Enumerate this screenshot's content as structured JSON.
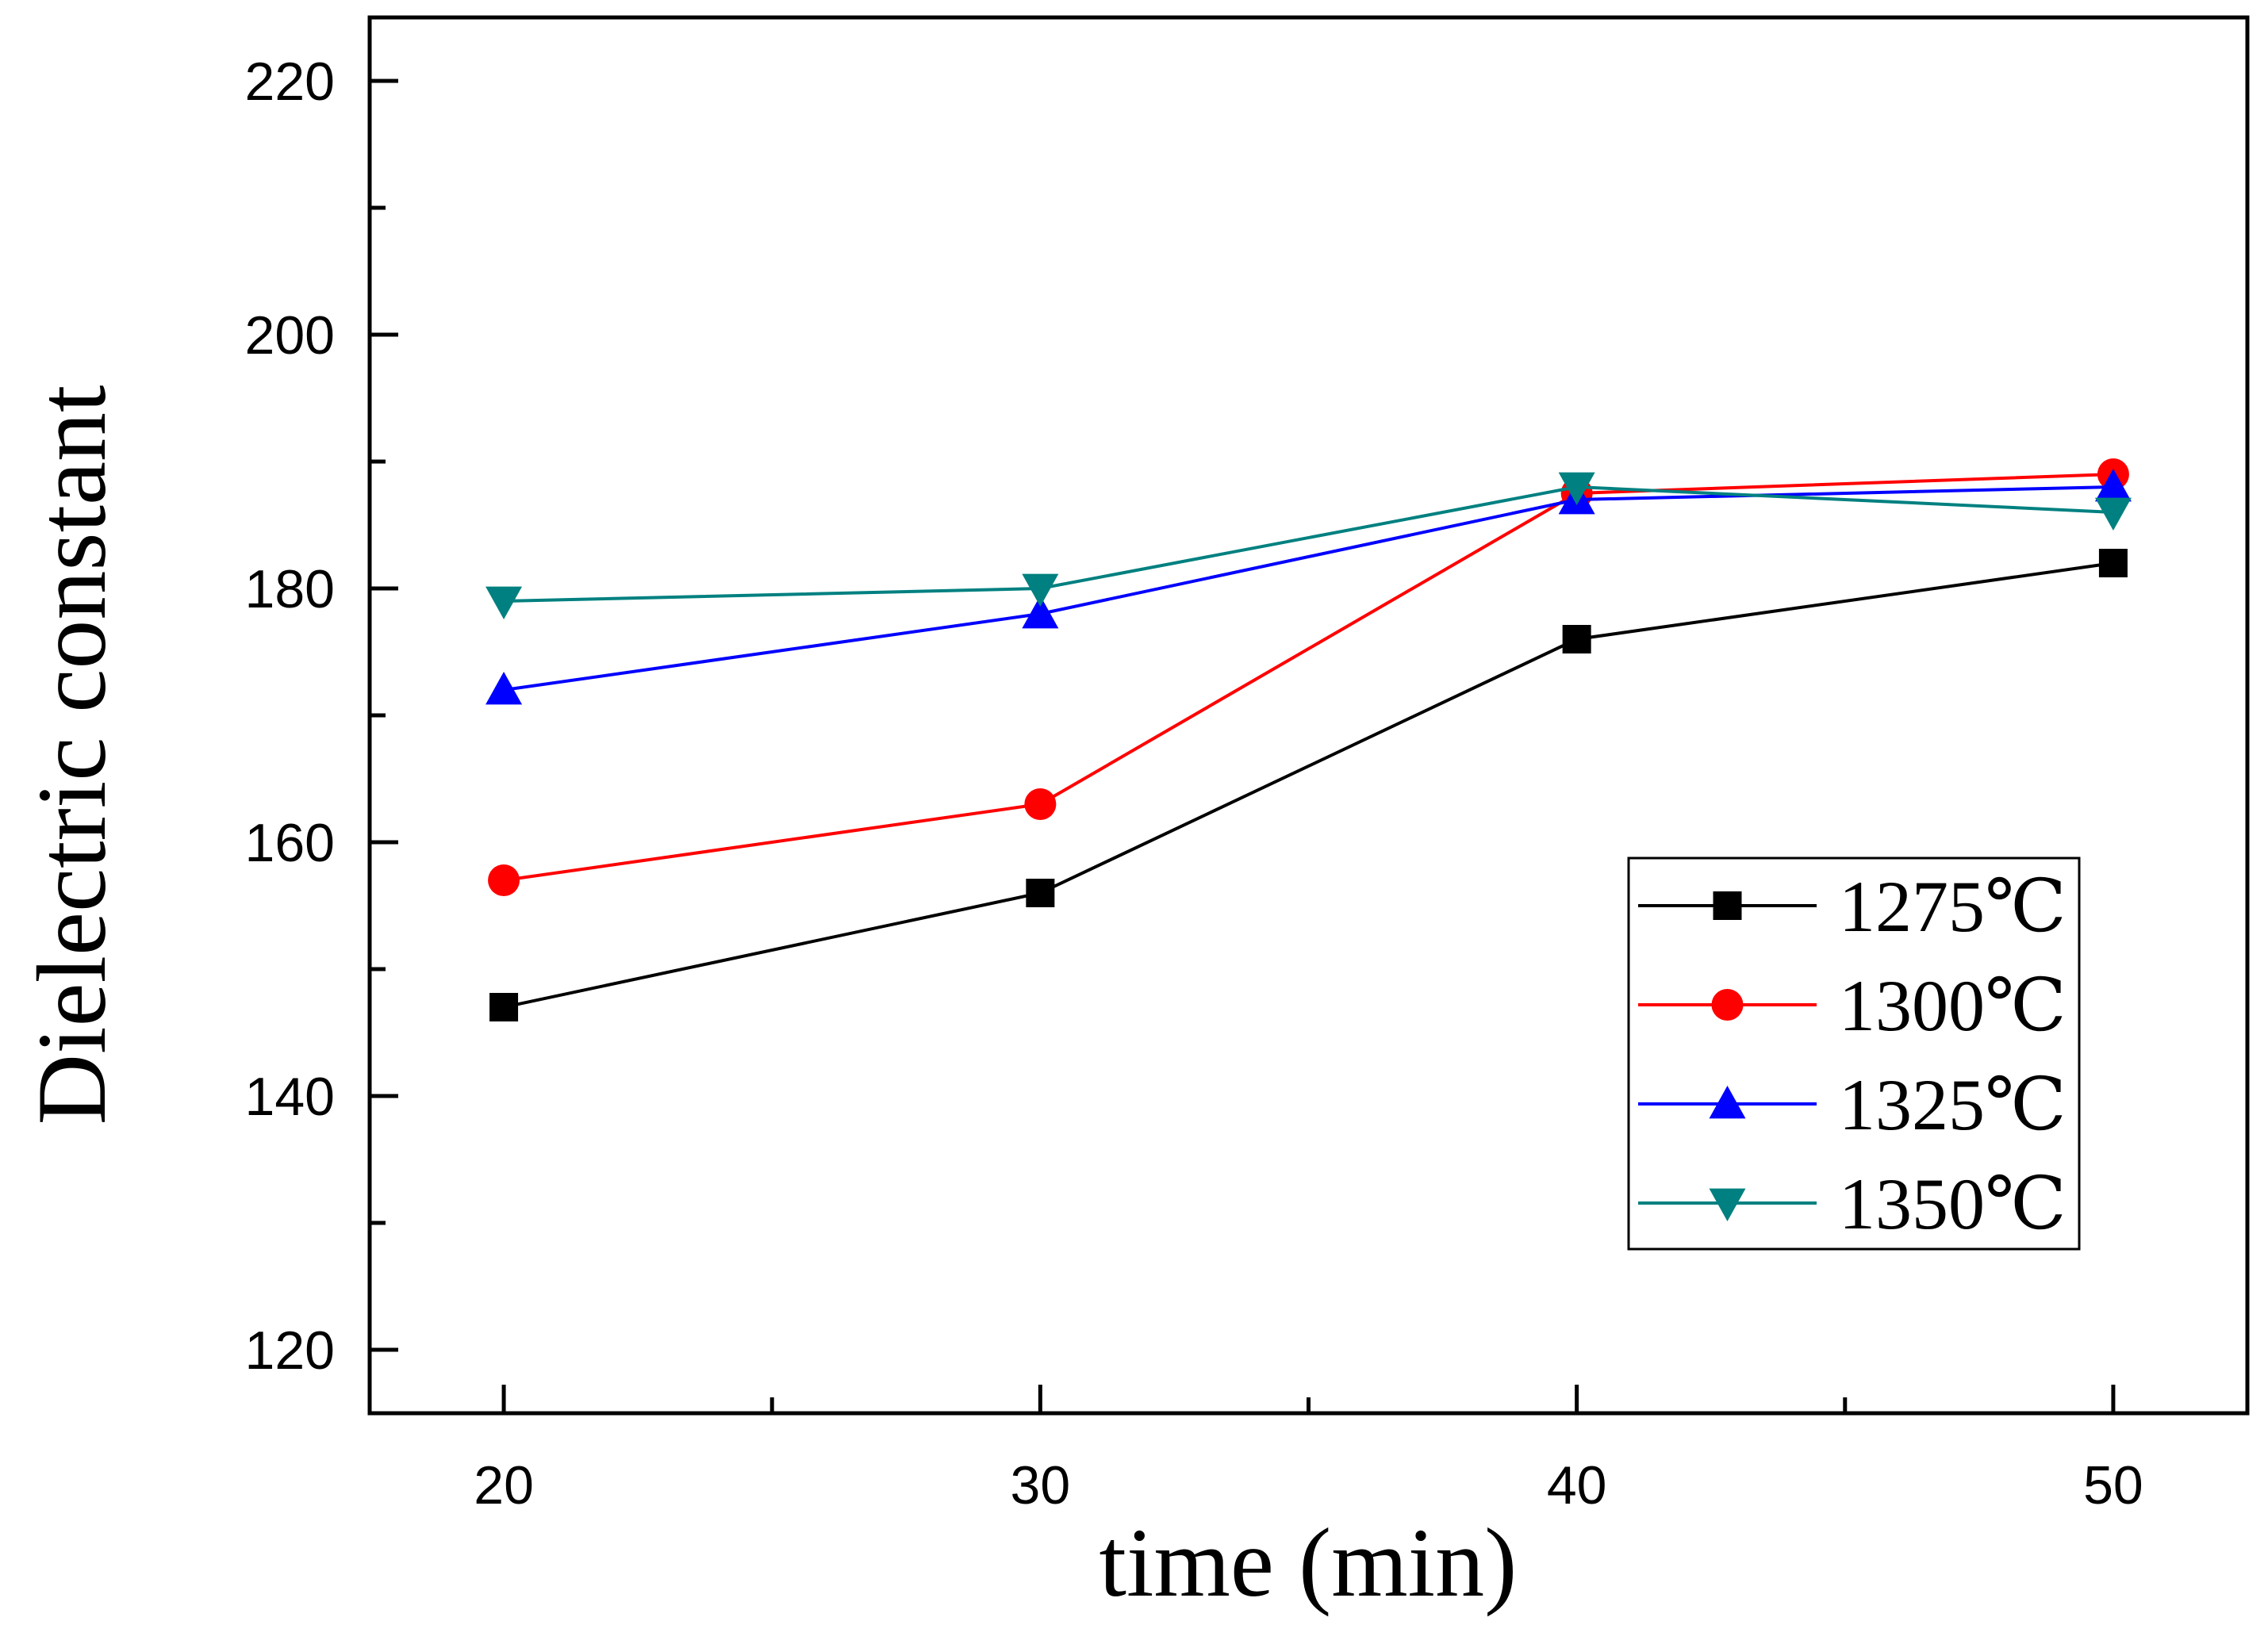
{
  "chart_data": {
    "type": "line",
    "title": "",
    "xlabel": "time (min)",
    "ylabel": "Dielectric constant",
    "x": [
      20,
      30,
      40,
      50
    ],
    "xlim": [
      17.5,
      52.5
    ],
    "ylim": [
      115,
      225
    ],
    "x_ticks": [
      20,
      30,
      40,
      50
    ],
    "x_minor_ticks": [
      25,
      35,
      45
    ],
    "y_ticks": [
      120,
      140,
      160,
      180,
      200,
      220
    ],
    "y_minor_ticks": [
      130,
      150,
      170,
      190,
      210
    ],
    "x_tick_labels": [
      "20",
      "30",
      "40",
      "50"
    ],
    "y_tick_labels": [
      "120",
      "140",
      "160",
      "180",
      "200",
      "220"
    ],
    "grid": false,
    "legend_position": "lower-right",
    "series": [
      {
        "name": "1275℃",
        "color": "#000000",
        "marker": "square",
        "values": [
          147,
          156,
          176,
          182
        ]
      },
      {
        "name": "1300℃",
        "color": "#ff0000",
        "marker": "circle",
        "values": [
          157,
          163,
          187.5,
          189
        ]
      },
      {
        "name": "1325℃",
        "color": "#0000ff",
        "marker": "triangle-up",
        "values": [
          172,
          178,
          187,
          188
        ]
      },
      {
        "name": "1350℃",
        "color": "#008080",
        "marker": "triangle-down",
        "values": [
          179,
          180,
          188,
          186
        ]
      }
    ]
  }
}
